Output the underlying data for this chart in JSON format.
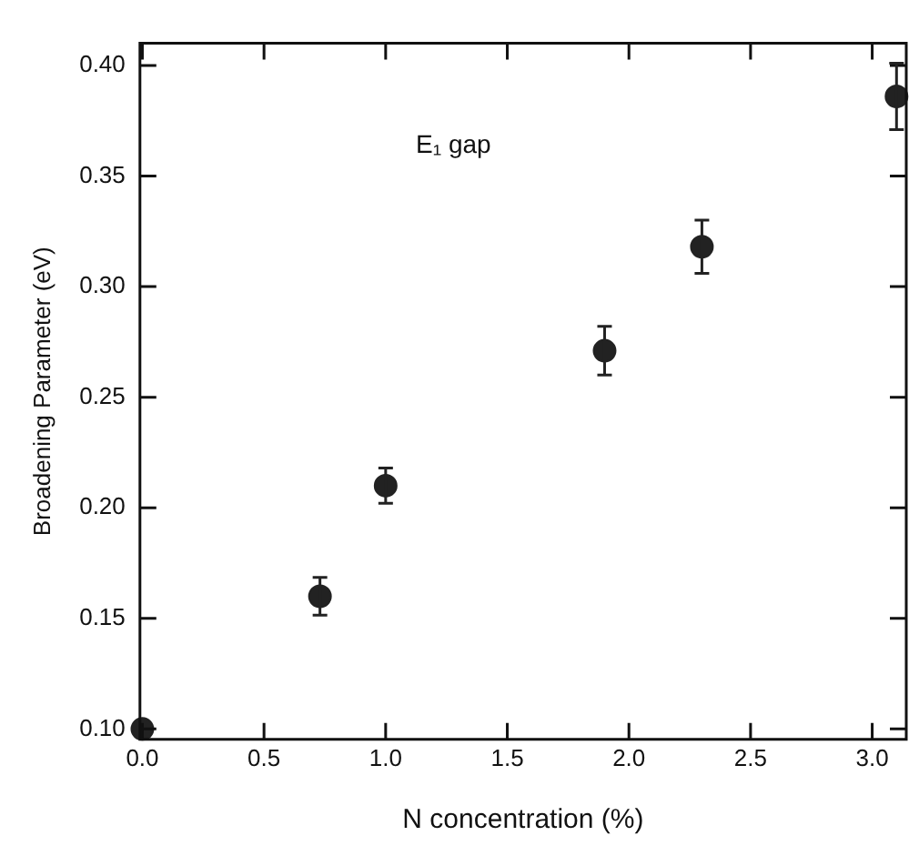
{
  "chart_data": {
    "type": "scatter",
    "xlabel": "N concentration (%)",
    "ylabel": "Broadening Parameter (eV)",
    "annotations": [
      "E₁ gap"
    ],
    "x": [
      0.0,
      0.73,
      1.0,
      1.9,
      2.3,
      3.1
    ],
    "series": [
      {
        "color": "#222222",
        "values": [
          0.1,
          0.16,
          0.21,
          0.271,
          0.318,
          0.386
        ],
        "errors": [
          null,
          0.0085,
          0.008,
          0.011,
          0.012,
          0.015
        ]
      }
    ],
    "xlim": [
      -0.01,
      3.14
    ],
    "xticks": [
      {
        "value": 0,
        "label": "0.0"
      },
      0.5,
      {
        "value": 1,
        "label": "1.0"
      },
      1.5,
      {
        "value": 2,
        "label": "2.0"
      },
      2.5,
      {
        "value": 3,
        "label": "3.0"
      }
    ],
    "ylim": [
      0.0953,
      0.41
    ],
    "yticks": [
      {
        "value": 0.1,
        "label": "0.10"
      },
      0.15,
      {
        "value": 0.2,
        "label": "0.20"
      },
      0.25,
      {
        "value": 0.3,
        "label": "0.30"
      },
      0.35,
      {
        "value": 0.4,
        "label": "0.40"
      }
    ],
    "grid": false,
    "legend": false,
    "marker": "circle"
  }
}
